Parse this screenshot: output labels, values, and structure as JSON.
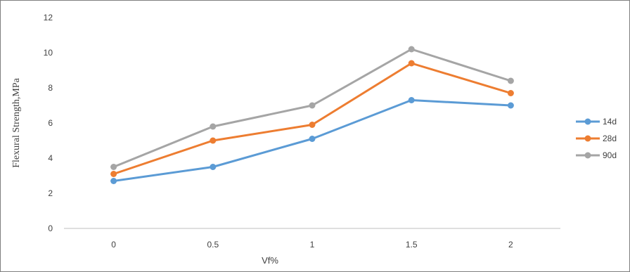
{
  "chart_data": {
    "type": "line",
    "title": "",
    "xlabel": "Vf%",
    "ylabel": "Flexural  Strength,MPa",
    "categories": [
      "0",
      "0.5",
      "1",
      "1.5",
      "2"
    ],
    "ylim": [
      0,
      12
    ],
    "yticks": [
      0,
      2,
      4,
      6,
      8,
      10,
      12
    ],
    "grid": false,
    "legend_position": "right",
    "series": [
      {
        "name": "14d",
        "values": [
          2.7,
          3.5,
          5.1,
          7.3,
          7.0
        ],
        "color": "#5b9bd5"
      },
      {
        "name": "28d",
        "values": [
          3.1,
          5.0,
          5.9,
          9.4,
          7.7
        ],
        "color": "#ed7d31"
      },
      {
        "name": "90d",
        "values": [
          3.5,
          5.8,
          7.0,
          10.2,
          8.4
        ],
        "color": "#a5a5a5"
      }
    ]
  }
}
